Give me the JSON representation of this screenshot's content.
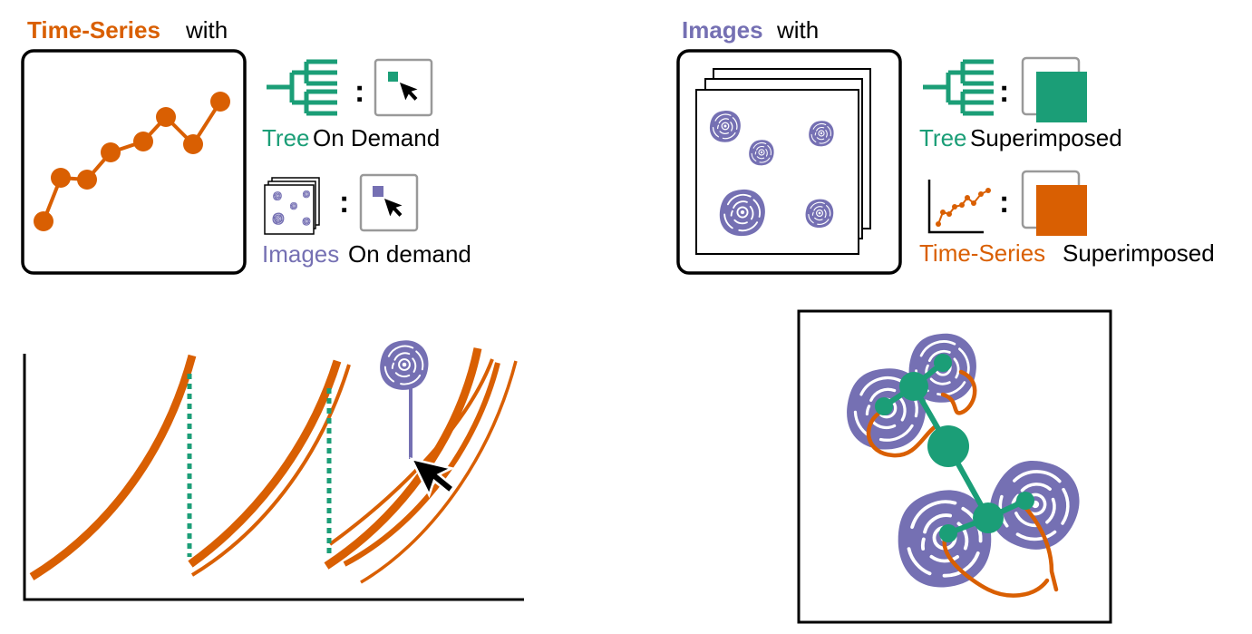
{
  "colors": {
    "orange": "#d95f02",
    "green": "#1b9e77",
    "purple": "#7570b3",
    "black": "#000000"
  },
  "left_panel": {
    "heading_highlight": "Time-Series",
    "heading_rest": " with",
    "tree_label_highlight": "Tree",
    "tree_label_rest": " On Demand",
    "images_label_highlight": "Images",
    "images_label_rest": " On demand",
    "colon": ":"
  },
  "right_panel": {
    "heading_highlight": "Images",
    "heading_rest": " with",
    "tree_label_highlight": "Tree",
    "tree_label_rest": " Superimposed",
    "ts_label_highlight": "Time-Series",
    "ts_label_rest": " Superimposed",
    "colon": ":"
  },
  "icons": {
    "tree": "tree-icon",
    "cursor": "cursor-arrow-icon",
    "cell": "cell-image-icon",
    "line_chart": "line-chart-icon"
  }
}
